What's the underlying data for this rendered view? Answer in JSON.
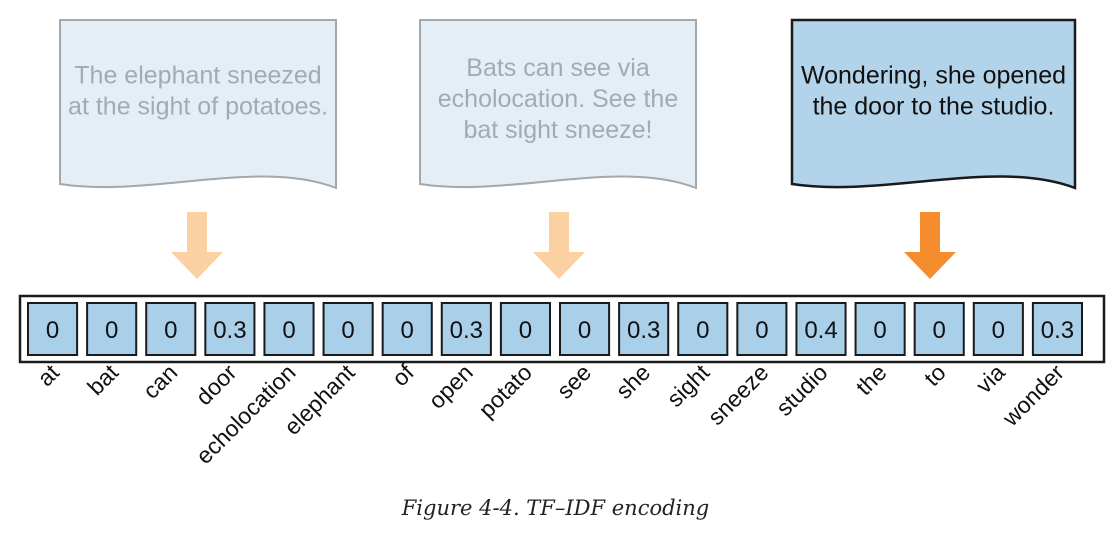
{
  "documents": [
    {
      "lines": [
        "The elephant sneezed",
        "at the sight of potatoes."
      ],
      "active": false
    },
    {
      "lines": [
        "Bats can see via",
        "echolocation. See the",
        "bat sight sneeze!"
      ],
      "active": false
    },
    {
      "lines": [
        "Wondering, she opened",
        "the door to the studio."
      ],
      "active": true
    }
  ],
  "vector": [
    {
      "term": "at",
      "value": "0"
    },
    {
      "term": "bat",
      "value": "0"
    },
    {
      "term": "can",
      "value": "0"
    },
    {
      "term": "door",
      "value": "0.3"
    },
    {
      "term": "echolocation",
      "value": "0"
    },
    {
      "term": "elephant",
      "value": "0"
    },
    {
      "term": "of",
      "value": "0"
    },
    {
      "term": "open",
      "value": "0.3"
    },
    {
      "term": "potato",
      "value": "0"
    },
    {
      "term": "see",
      "value": "0"
    },
    {
      "term": "she",
      "value": "0.3"
    },
    {
      "term": "sight",
      "value": "0"
    },
    {
      "term": "sneeze",
      "value": "0"
    },
    {
      "term": "studio",
      "value": "0.4"
    },
    {
      "term": "the",
      "value": "0"
    },
    {
      "term": "to",
      "value": "0"
    },
    {
      "term": "via",
      "value": "0"
    },
    {
      "term": "wonder",
      "value": "0.3"
    }
  ],
  "caption": "Figure 4-4. TF–IDF encoding",
  "colors": {
    "doc_fill_inactive": "#e3eef7",
    "doc_stroke_inactive": "#a3a8ac",
    "doc_text_inactive": "#a4abb0",
    "doc_fill_active": "#b2d3ea",
    "doc_stroke_active": "#1a1a1a",
    "doc_text_active": "#111111",
    "arrow_inactive": "#fbd0a3",
    "arrow_active": "#f58c2e",
    "cell_fill": "#a9cfe9",
    "cell_stroke": "#1a1a1a"
  }
}
